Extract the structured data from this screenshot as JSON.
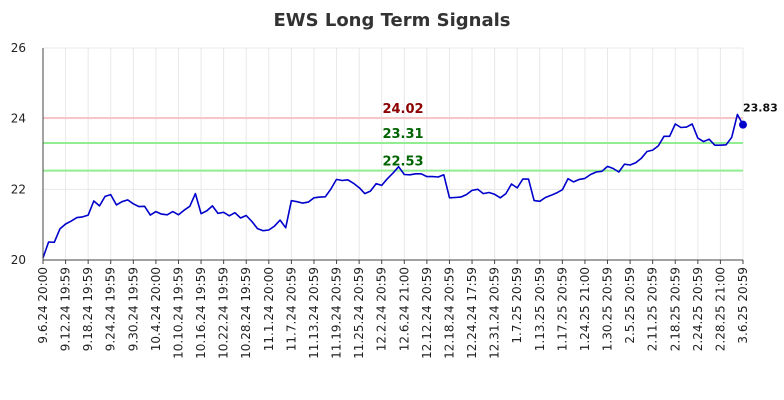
{
  "chart_data": {
    "type": "line",
    "title": "EWS Long Term Signals",
    "ylim": [
      20,
      26
    ],
    "y_ticks": [
      "20",
      "22",
      "24",
      "26"
    ],
    "grid": true,
    "x_tick_labels": [
      "9.6.24 20:00",
      "9.12.24 19:59",
      "9.18.24 19:59",
      "9.24.24 19:59",
      "9.30.24 19:59",
      "10.4.24 20:00",
      "10.10.24 19:59",
      "10.16.24 19:59",
      "10.22.24 19:59",
      "10.28.24 19:59",
      "11.1.24 20:00",
      "11.7.24 20:59",
      "11.13.24 20:59",
      "11.19.24 20:59",
      "11.25.24 20:59",
      "12.2.24 20:59",
      "12.6.24 21:00",
      "12.12.24 20:59",
      "12.18.24 20:59",
      "12.24.24 17:59",
      "12.31.24 20:59",
      "1.7.25 20:59",
      "1.13.25 20:59",
      "1.17.25 20:59",
      "1.24.25 21:00",
      "1.30.25 20:59",
      "2.5.25 20:59",
      "2.11.25 20:59",
      "2.18.25 20:59",
      "2.24.25 20:59",
      "2.28.25 21:00",
      "3.6.25 20:59"
    ],
    "levels": [
      {
        "label": "24.02",
        "value": 24.02,
        "line_color": "#f7c6c6",
        "text_color": "#8b0000"
      },
      {
        "label": "23.31",
        "value": 23.31,
        "line_color": "#90ee90",
        "text_color": "#006400"
      },
      {
        "label": "22.53",
        "value": 22.53,
        "line_color": "#90ee90",
        "text_color": "#006400"
      }
    ],
    "last_value_label": "23.83",
    "series": [
      {
        "color": "#0000cc",
        "values": [
          20.06,
          20.51,
          20.5,
          20.88,
          21.02,
          21.1,
          21.2,
          21.22,
          21.27,
          21.67,
          21.53,
          21.8,
          21.85,
          21.56,
          21.65,
          21.7,
          21.59,
          21.51,
          21.52,
          21.27,
          21.37,
          21.3,
          21.28,
          21.37,
          21.28,
          21.41,
          21.52,
          21.88,
          21.31,
          21.39,
          21.53,
          21.32,
          21.35,
          21.25,
          21.34,
          21.19,
          21.26,
          21.09,
          20.89,
          20.83,
          20.85,
          20.96,
          21.13,
          20.91,
          21.68,
          21.65,
          21.61,
          21.64,
          21.76,
          21.78,
          21.79,
          22.01,
          22.28,
          22.25,
          22.27,
          22.17,
          22.05,
          21.88,
          21.95,
          22.16,
          22.11,
          22.3,
          22.46,
          22.64,
          22.42,
          22.41,
          22.44,
          22.44,
          22.36,
          22.36,
          22.35,
          22.41,
          21.76,
          21.77,
          21.78,
          21.85,
          21.97,
          22.0,
          21.88,
          21.91,
          21.86,
          21.76,
          21.88,
          22.15,
          22.04,
          22.29,
          22.29,
          21.68,
          21.66,
          21.77,
          21.83,
          21.9,
          21.99,
          22.3,
          22.21,
          22.28,
          22.31,
          22.42,
          22.49,
          22.51,
          22.65,
          22.59,
          22.49,
          22.71,
          22.69,
          22.75,
          22.88,
          23.07,
          23.11,
          23.23,
          23.5,
          23.5,
          23.85,
          23.75,
          23.76,
          23.85,
          23.45,
          23.35,
          23.42,
          23.25,
          23.25,
          23.26,
          23.47,
          24.12,
          23.83
        ]
      }
    ]
  }
}
